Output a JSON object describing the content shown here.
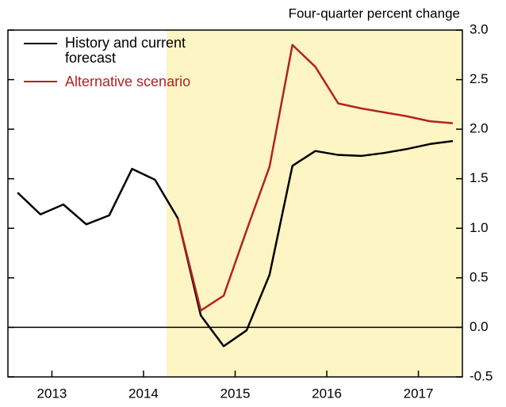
{
  "chart_data": {
    "type": "line",
    "y_axis_label": "Four-quarter percent change",
    "x": [
      2013.125,
      2013.375,
      2013.625,
      2013.875,
      2014.125,
      2014.375,
      2014.625,
      2014.875,
      2015.125,
      2015.375,
      2015.625,
      2015.875,
      2016.125,
      2016.375,
      2016.625,
      2016.875,
      2017.125,
      2017.375,
      2017.625,
      2017.875
    ],
    "series": [
      {
        "name": "History and current forecast",
        "color": "#000000",
        "values": [
          1.36,
          1.14,
          1.24,
          1.04,
          1.13,
          1.6,
          1.49,
          1.1,
          0.12,
          -0.19,
          -0.03,
          0.53,
          1.63,
          1.78,
          1.74,
          1.73,
          1.76,
          1.8,
          1.85,
          1.88
        ]
      },
      {
        "name": "Alternative scenario",
        "color": "#b22222",
        "values": [
          null,
          null,
          null,
          null,
          null,
          null,
          null,
          1.1,
          0.17,
          0.32,
          0.98,
          1.62,
          2.85,
          2.63,
          2.26,
          2.21,
          2.17,
          2.13,
          2.08,
          2.06
        ]
      }
    ],
    "xlim": [
      2013.02,
      2017.98
    ],
    "xticks": [
      {
        "value": 2013.5,
        "label": "2013"
      },
      {
        "value": 2014.5,
        "label": "2014"
      },
      {
        "value": 2015.5,
        "label": "2015"
      },
      {
        "value": 2016.5,
        "label": "2016"
      },
      {
        "value": 2017.5,
        "label": "2017"
      }
    ],
    "ylim": [
      -0.5,
      3.0
    ],
    "yticks": [
      {
        "value": -0.5,
        "label": "-0.5"
      },
      {
        "value": 0,
        "label": "0.0"
      },
      {
        "value": 0.5,
        "label": "0.5"
      },
      {
        "value": 1,
        "label": "1.0"
      },
      {
        "value": 1.5,
        "label": "1.5"
      },
      {
        "value": 2,
        "label": "2.0"
      },
      {
        "value": 2.5,
        "label": "2.5"
      },
      {
        "value": 3,
        "label": "3.0"
      }
    ],
    "shaded_region": {
      "x": [
        2014.75,
        2017.98
      ],
      "color": "#fdf5c4"
    },
    "zero_line": true,
    "legend": "upper left"
  }
}
